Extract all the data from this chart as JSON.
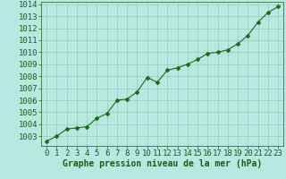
{
  "x": [
    0,
    1,
    2,
    3,
    4,
    5,
    6,
    7,
    8,
    9,
    10,
    11,
    12,
    13,
    14,
    15,
    16,
    17,
    18,
    19,
    20,
    21,
    22,
    23
  ],
  "y": [
    1002.6,
    1003.0,
    1003.6,
    1003.7,
    1003.8,
    1004.5,
    1004.9,
    1006.0,
    1006.1,
    1006.7,
    1007.9,
    1007.5,
    1008.5,
    1008.7,
    1009.0,
    1009.4,
    1009.9,
    1010.0,
    1010.2,
    1010.7,
    1011.4,
    1012.5,
    1013.3,
    1013.8
  ],
  "ylim": [
    1002.2,
    1014.2
  ],
  "yticks": [
    1003,
    1004,
    1005,
    1006,
    1007,
    1008,
    1009,
    1010,
    1011,
    1012,
    1013,
    1014
  ],
  "xlim": [
    -0.5,
    23.5
  ],
  "xticks": [
    0,
    1,
    2,
    3,
    4,
    5,
    6,
    7,
    8,
    9,
    10,
    11,
    12,
    13,
    14,
    15,
    16,
    17,
    18,
    19,
    20,
    21,
    22,
    23
  ],
  "line_color": "#1a6b1a",
  "marker": "D",
  "marker_size": 2.5,
  "bg_color": "#b8e8e0",
  "grid_color": "#99ccbb",
  "xlabel": "Graphe pression niveau de la mer (hPa)",
  "xlabel_color": "#1a5c1a",
  "tick_color": "#1a5c1a",
  "label_fontsize": 6.5,
  "xlabel_fontsize": 7.0,
  "linewidth": 0.8
}
